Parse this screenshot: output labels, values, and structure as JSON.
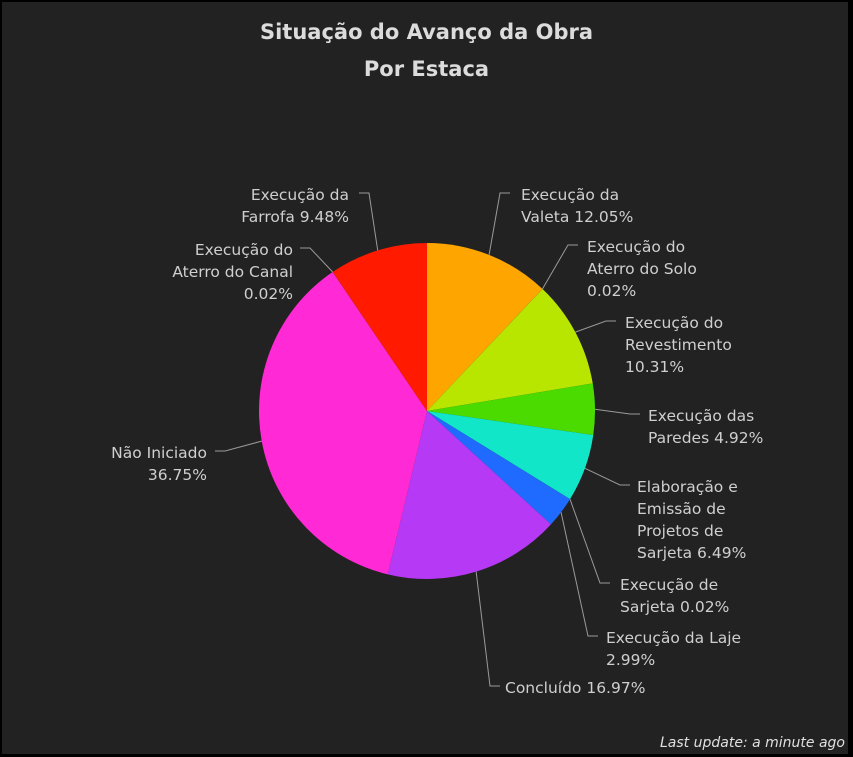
{
  "chart_data": {
    "type": "pie",
    "title": "Situação do Avanço da Obra",
    "subtitle": "Por Estaca",
    "slices": [
      {
        "lines": [
          "Execução da",
          "Valeta 12.05%"
        ],
        "value": 12.05,
        "color": "#ffa500"
      },
      {
        "lines": [
          "Execução do",
          "Aterro do Solo",
          "0.02%"
        ],
        "value": 0.02,
        "color": "#ffd000"
      },
      {
        "lines": [
          "Execução do",
          "Revestimento",
          "10.31%"
        ],
        "value": 10.31,
        "color": "#b8e600"
      },
      {
        "lines": [
          "Execução das",
          "Paredes 4.92%"
        ],
        "value": 4.92,
        "color": "#4bdb00"
      },
      {
        "lines": [
          "Elaboração e",
          "Emissão de",
          "Projetos de",
          "Sarjeta 6.49%"
        ],
        "value": 6.49,
        "color": "#12e6c8"
      },
      {
        "lines": [
          "Execução de",
          "Sarjeta 0.02%"
        ],
        "value": 0.02,
        "color": "#1aa8ff"
      },
      {
        "lines": [
          "Execução da Laje",
          "2.99%"
        ],
        "value": 2.99,
        "color": "#1f6bff"
      },
      {
        "lines": [
          "Concluído 16.97%"
        ],
        "value": 16.97,
        "color": "#b539f5"
      },
      {
        "lines": [
          "Não Iniciado",
          "36.75%"
        ],
        "value": 36.75,
        "color": "#ff2ad6"
      },
      {
        "lines": [
          "Execução do",
          "Aterro do Canal",
          "0.02%"
        ],
        "value": 0.02,
        "color": "#ff3a3a"
      },
      {
        "lines": [
          "Execução da",
          "Farrofa 9.48%"
        ],
        "value": 9.48,
        "color": "#ff1a00"
      }
    ]
  },
  "footer": "Last update: a minute ago"
}
